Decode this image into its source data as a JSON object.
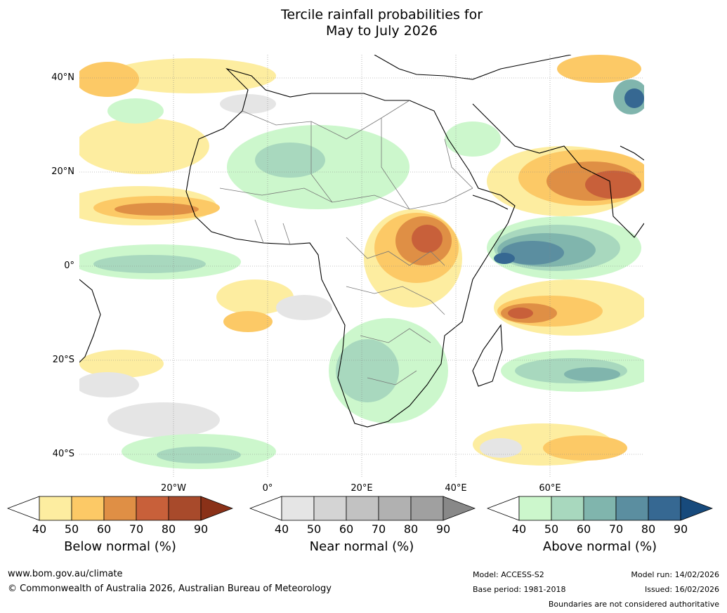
{
  "title_line1": "Tercile rainfall probabilities for",
  "title_line2": "May to July 2026",
  "lat_labels": [
    "40°N",
    "20°N",
    "0°",
    "20°S",
    "40°S"
  ],
  "lon_labels": [
    "20°W",
    "0°",
    "20°E",
    "40°E",
    "60°E"
  ],
  "legend": [
    {
      "title": "Below normal (%)",
      "ticks": [
        "40",
        "50",
        "60",
        "70",
        "80",
        "90"
      ],
      "colors": [
        "#ffffff",
        "#fdeda0",
        "#fcc966",
        "#df8f45",
        "#c8603a",
        "#a84a2b",
        "#8a3118"
      ]
    },
    {
      "title": "Near normal (%)",
      "ticks": [
        "40",
        "50",
        "60",
        "70",
        "80",
        "90"
      ],
      "colors": [
        "#ffffff",
        "#e5e5e5",
        "#d4d4d4",
        "#c2c2c2",
        "#b1b1b1",
        "#a0a0a0",
        "#888888"
      ]
    },
    {
      "title": "Above normal (%)",
      "ticks": [
        "40",
        "50",
        "60",
        "70",
        "80",
        "90"
      ],
      "colors": [
        "#ffffff",
        "#ccf7cc",
        "#a8d8be",
        "#80b5ad",
        "#5b8ea0",
        "#366892",
        "#174a7c"
      ]
    }
  ],
  "footer": {
    "url": "www.bom.gov.au/climate",
    "copyright": "© Commonwealth of Australia 2026, Australian Bureau of Meteorology",
    "model": "Model: ACCESS-S2",
    "base_period": "Base period: 1981-2018",
    "model_run": "Model run: 14/02/2026",
    "issued": "Issued: 16/02/2026",
    "disclaimer": "Boundaries are not considered authoritative"
  }
}
